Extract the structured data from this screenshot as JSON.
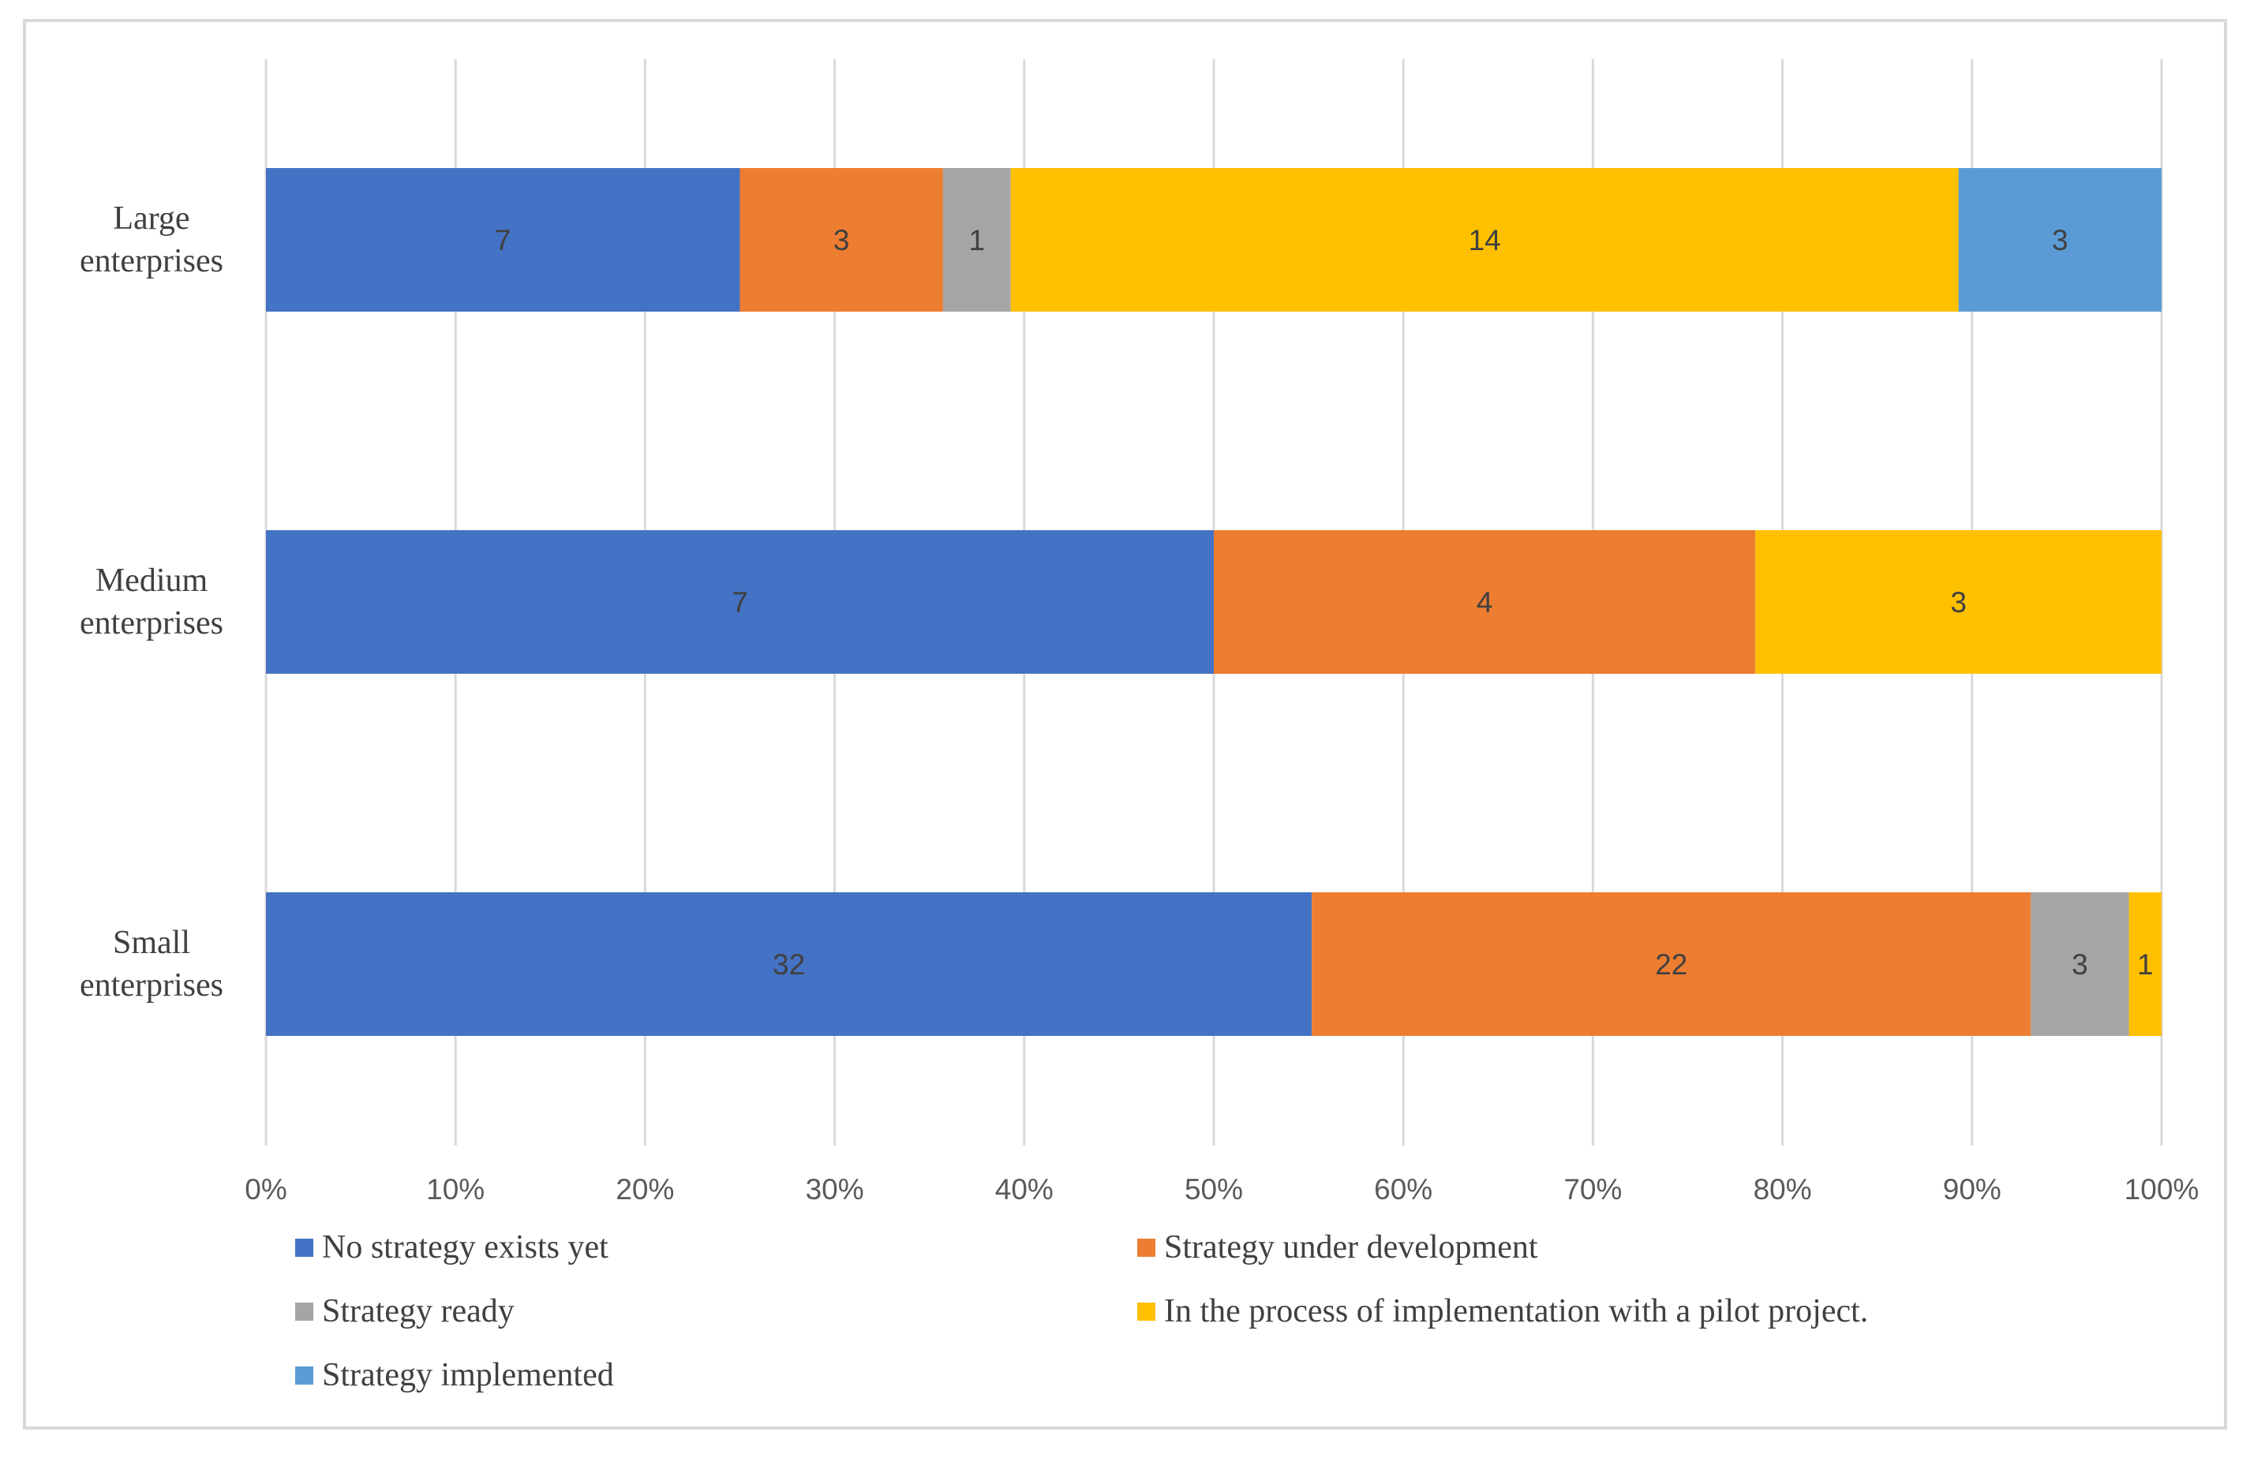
{
  "chart_data": {
    "type": "bar",
    "orientation": "horizontal",
    "stacked": "percent",
    "categories": [
      "Large enterprises",
      "Medium enterprises",
      "Small enterprises"
    ],
    "category_lines": [
      [
        "Large",
        "enterprises"
      ],
      [
        "Medium",
        "enterprises"
      ],
      [
        "Small",
        "enterprises"
      ]
    ],
    "series": [
      {
        "name": "No strategy exists yet",
        "color": "#4472c4",
        "values": [
          7,
          7,
          32
        ]
      },
      {
        "name": "Strategy under development",
        "color": "#ed7d31",
        "values": [
          3,
          4,
          22
        ]
      },
      {
        "name": "Strategy ready",
        "color": "#a5a5a5",
        "values": [
          1,
          0,
          3
        ]
      },
      {
        "name": "In the process of implementation with a pilot project.",
        "color": "#ffc000",
        "values": [
          14,
          3,
          1
        ]
      },
      {
        "name": "Strategy implemented",
        "color": "#5b9bd5",
        "values": [
          3,
          0,
          0
        ]
      }
    ],
    "xlim": [
      0,
      100
    ],
    "x_ticks": [
      "0%",
      "10%",
      "20%",
      "30%",
      "40%",
      "50%",
      "60%",
      "70%",
      "80%",
      "90%",
      "100%"
    ],
    "grid": true,
    "legend_position": "bottom",
    "title": "",
    "xlabel": "",
    "ylabel": ""
  }
}
